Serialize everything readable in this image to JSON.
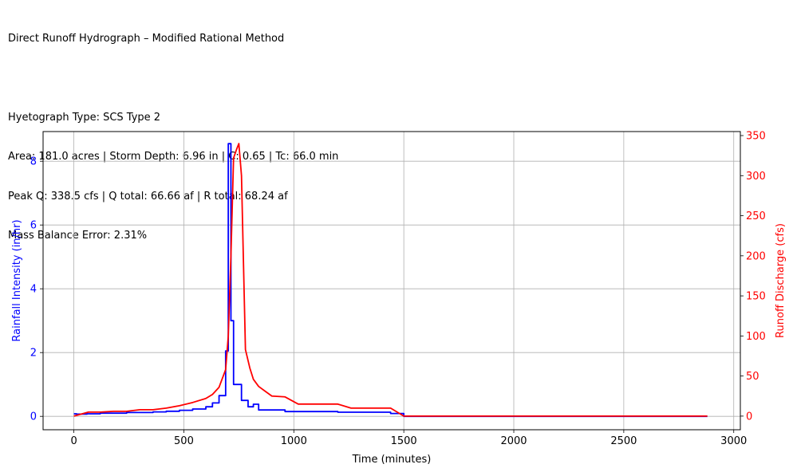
{
  "header": {
    "line1": "Direct Runoff Hydrograph – Modified Rational Method",
    "line2": "Hyetograph Type: SCS Type 2",
    "line3": "Area: 181.0 acres | Storm Depth: 6.96 in | C: 0.65 | Tc: 66.0 min",
    "line4": "Peak Q: 338.5 cfs | Q total: 66.66 af | R total: 68.24 af",
    "line5": "Mass Balance Error: 2.31%"
  },
  "chart_data": {
    "type": "line",
    "xlabel": "Time (minutes)",
    "ylabel_left": "Rainfall Intensity (in/hr)",
    "ylabel_right": "Runoff Discharge (cfs)",
    "xlim": [
      -140,
      3030
    ],
    "ylim_left": [
      -0.42,
      8.93
    ],
    "ylim_right": [
      -17,
      355
    ],
    "x_ticks": [
      0,
      500,
      1000,
      1500,
      2000,
      2500,
      3000
    ],
    "y_ticks_left": [
      0,
      2,
      4,
      6,
      8
    ],
    "y_ticks_right": [
      0,
      50,
      100,
      150,
      200,
      250,
      300,
      350
    ],
    "grid": true,
    "colors": {
      "rainfall": "#0000ff",
      "runoff": "#ff0000",
      "grid": "#b0b0b0"
    },
    "series": [
      {
        "axis": "left",
        "style": "step",
        "x": [
          0,
          12,
          60,
          120,
          240,
          360,
          420,
          480,
          540,
          600,
          630,
          660,
          690,
          702,
          714,
          726,
          762,
          792,
          816,
          840,
          960,
          1200,
          1440,
          1500,
          2880
        ],
        "y": [
          0.08,
          0.07,
          0.08,
          0.1,
          0.12,
          0.14,
          0.16,
          0.19,
          0.23,
          0.3,
          0.42,
          0.65,
          2.05,
          8.55,
          3.0,
          1.0,
          0.5,
          0.3,
          0.38,
          0.2,
          0.15,
          0.13,
          0.09,
          0.0,
          0.0
        ]
      },
      {
        "axis": "right",
        "style": "line",
        "x": [
          0,
          66,
          120,
          180,
          240,
          300,
          360,
          420,
          480,
          540,
          600,
          630,
          660,
          690,
          702,
          714,
          726,
          740,
          750,
          762,
          780,
          800,
          816,
          840,
          870,
          900,
          960,
          1020,
          1200,
          1260,
          1440,
          1500,
          2880
        ],
        "y": [
          0,
          5,
          5,
          6,
          6,
          8,
          8,
          10,
          13,
          17,
          22,
          27,
          36,
          58,
          100,
          200,
          322,
          333,
          340,
          300,
          83,
          60,
          46,
          37,
          31,
          25,
          24,
          15,
          15,
          10,
          10,
          0,
          0
        ]
      }
    ]
  }
}
